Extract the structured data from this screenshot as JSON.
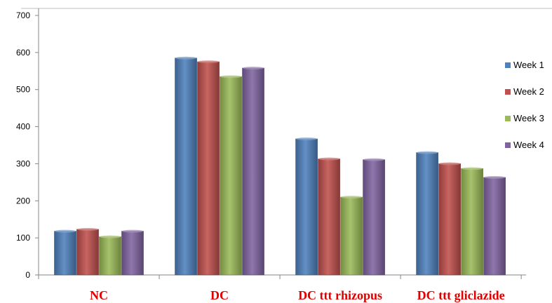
{
  "chart_data": {
    "type": "bar",
    "title": "",
    "xlabel": "",
    "ylabel": "",
    "categories": [
      "NC",
      "DC",
      "DC ttt rhizopus",
      "DC ttt gliclazide"
    ],
    "series": [
      {
        "name": "Week 1",
        "values": [
          118,
          585,
          367,
          330
        ],
        "color": "#4f81bd"
      },
      {
        "name": "Week 2",
        "values": [
          123,
          575,
          313,
          300
        ],
        "color": "#c0504d"
      },
      {
        "name": "Week 3",
        "values": [
          103,
          535,
          210,
          287
        ],
        "color": "#9bbb59"
      },
      {
        "name": "Week 4",
        "values": [
          118,
          558,
          311,
          263
        ],
        "color": "#8064a2"
      }
    ],
    "ylim": [
      0,
      700
    ],
    "yticks": [
      0,
      100,
      200,
      300,
      400,
      500,
      600,
      700
    ],
    "ytick_labels": [
      "0",
      "100",
      "200",
      "300",
      "400",
      "500",
      "600",
      "700"
    ],
    "grid": false,
    "legend_position": "right",
    "category_label_color": "#e00000"
  }
}
